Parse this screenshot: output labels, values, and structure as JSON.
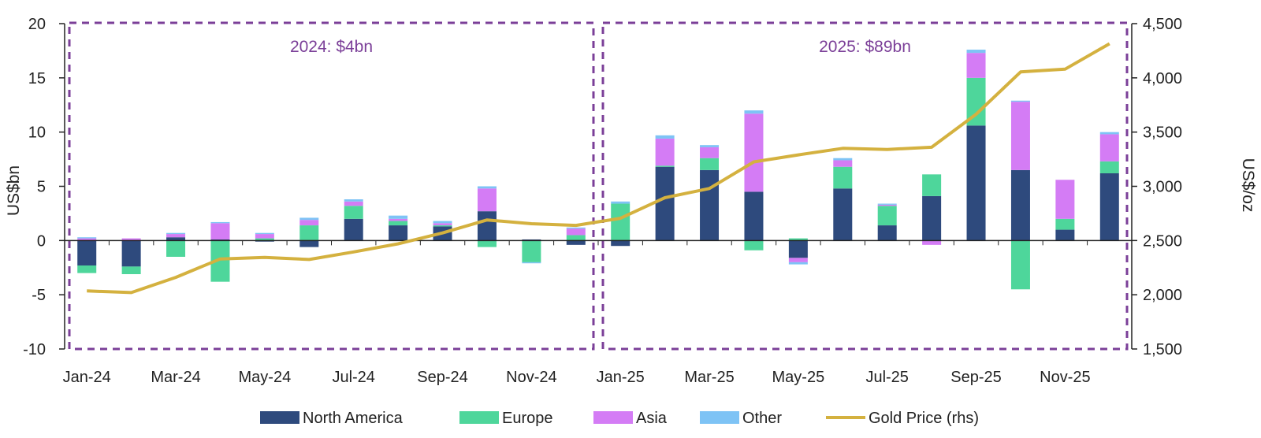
{
  "chart_data": {
    "type": "bar",
    "stacked": true,
    "categories": [
      "Jan-24",
      "Feb-24",
      "Mar-24",
      "Apr-24",
      "May-24",
      "Jun-24",
      "Jul-24",
      "Aug-24",
      "Sep-24",
      "Oct-24",
      "Nov-24",
      "Dec-24",
      "Jan-25",
      "Feb-25",
      "Mar-25",
      "Apr-25",
      "May-25",
      "Jun-25",
      "Jul-25",
      "Aug-25",
      "Sep-25",
      "Oct-25",
      "Nov-25",
      "Dec-25"
    ],
    "x_tick_labels": [
      "Jan-24",
      "Mar-24",
      "May-24",
      "Jul-24",
      "Sep-24",
      "Nov-24",
      "Jan-25",
      "Mar-25",
      "May-25",
      "Jul-25",
      "Sep-25",
      "Nov-25"
    ],
    "ylabel": "US$bn",
    "y2label": "US$/oz",
    "ylim": [
      -10,
      20
    ],
    "y_ticks": [
      "-10",
      "-5",
      "0",
      "5",
      "10",
      "15",
      "20"
    ],
    "y2lim": [
      1500,
      4500
    ],
    "y2_ticks": [
      "1,500",
      "2,000",
      "2,500",
      "3,000",
      "3,500",
      "4,000",
      "4,500"
    ],
    "series": [
      {
        "name": "North America",
        "color": "#2e4a7d",
        "values": [
          -2.3,
          -2.4,
          0.3,
          0.1,
          -0.1,
          -0.6,
          2.0,
          1.4,
          1.3,
          2.7,
          0.1,
          -0.4,
          -0.5,
          6.8,
          6.5,
          4.5,
          -1.6,
          4.8,
          1.4,
          4.1,
          10.6,
          6.5,
          1.0,
          6.2
        ]
      },
      {
        "name": "Europe",
        "color": "#4ed69b",
        "values": [
          -0.7,
          -0.7,
          -1.5,
          -3.8,
          0.2,
          1.4,
          1.2,
          0.4,
          0.1,
          -0.6,
          -2.0,
          0.5,
          3.4,
          0.1,
          1.1,
          -0.9,
          0.2,
          2.0,
          1.8,
          2.0,
          4.4,
          -4.5,
          1.0,
          1.1
        ]
      },
      {
        "name": "Asia",
        "color": "#d47cf5",
        "values": [
          0.2,
          0.2,
          0.3,
          1.5,
          0.4,
          0.5,
          0.4,
          0.2,
          0.2,
          2.1,
          0.0,
          0.6,
          0.0,
          2.5,
          1.0,
          7.2,
          -0.4,
          0.6,
          0.1,
          -0.4,
          2.3,
          6.3,
          3.6,
          2.5
        ]
      },
      {
        "name": "Other",
        "color": "#7ec3f5",
        "values": [
          0.1,
          0.0,
          0.1,
          0.1,
          0.1,
          0.2,
          0.2,
          0.3,
          0.2,
          0.2,
          -0.1,
          0.1,
          0.2,
          0.3,
          0.2,
          0.3,
          -0.2,
          0.2,
          0.1,
          0.0,
          0.3,
          0.1,
          0.0,
          0.2
        ]
      }
    ],
    "line_series": {
      "name": "Gold Price (rhs)",
      "color": "#d4b13f",
      "axis": "right",
      "values": [
        2035,
        2020,
        2160,
        2330,
        2345,
        2325,
        2395,
        2470,
        2570,
        2690,
        2655,
        2640,
        2705,
        2895,
        2980,
        3225,
        3290,
        3350,
        3340,
        3360,
        3665,
        4055,
        4080,
        4315
      ]
    },
    "annotations": [
      {
        "text": "2024: $4bn",
        "range": [
          "Jan-24",
          "Dec-24"
        ]
      },
      {
        "text": "2025: $89bn",
        "range": [
          "Jan-25",
          "Dec-25"
        ]
      }
    ],
    "annotation_color": "#7b3f98",
    "legend": {
      "position": "bottom",
      "items": [
        "North America",
        "Europe",
        "Asia",
        "Other",
        "Gold Price (rhs)"
      ]
    }
  }
}
